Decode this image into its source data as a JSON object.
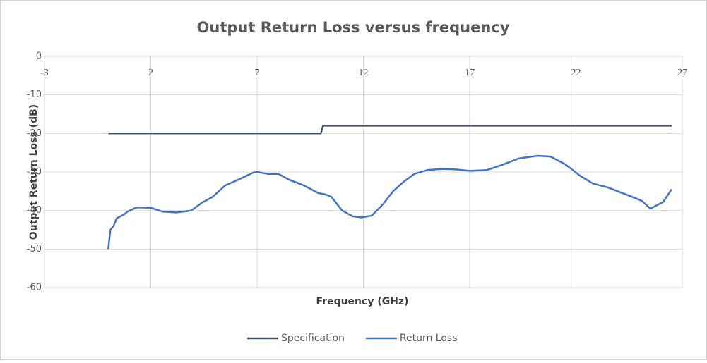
{
  "chart_data": {
    "type": "line",
    "title": "Output Return Loss versus frequency",
    "x_label": "Frequency (GHz)",
    "y_label": "Output Return Loss (dB)",
    "xlim": [
      -3,
      27
    ],
    "xticks": [
      -3,
      2,
      7,
      12,
      17,
      22,
      27
    ],
    "ylim": [
      -60,
      0
    ],
    "yticks": [
      0,
      -10,
      -20,
      -30,
      -40,
      -50,
      -60
    ],
    "grid": true,
    "legend": "bottom",
    "series": [
      {
        "name": "Specification",
        "color": "#44546a",
        "x": [
          0,
          10,
          10.1,
          26.5
        ],
        "values": [
          -20,
          -20,
          -18,
          -18
        ]
      },
      {
        "name": "Return Loss",
        "color": "#4472c4",
        "x": [
          0,
          0.1,
          0.25,
          0.4,
          0.75,
          0.9,
          1.33,
          2,
          2.56,
          3.2,
          3.9,
          4.4,
          4.9,
          5.5,
          6.2,
          6.8,
          7,
          7.5,
          8,
          8.5,
          9.2,
          9.9,
          10.2,
          10.5,
          11,
          11.5,
          11.9,
          12.4,
          12.9,
          13.4,
          13.9,
          14.4,
          15,
          15.7,
          16.3,
          17,
          17.8,
          18.5,
          19.3,
          20.2,
          20.8,
          21.5,
          22.2,
          22.8,
          23.5,
          24.2,
          24.8,
          25.1,
          25.5,
          26.1,
          26.5
        ],
        "values": [
          -50,
          -45,
          -44,
          -42,
          -41,
          -40.3,
          -39.2,
          -39.3,
          -40.3,
          -40.5,
          -40,
          -38,
          -36.5,
          -33.5,
          -31.8,
          -30.2,
          -30,
          -30.5,
          -30.5,
          -32,
          -33.5,
          -35.5,
          -35.8,
          -36.5,
          -40,
          -41.5,
          -41.8,
          -41.3,
          -38.5,
          -35,
          -32.5,
          -30.5,
          -29.5,
          -29.2,
          -29.3,
          -29.7,
          -29.5,
          -28.2,
          -26.5,
          -25.8,
          -26,
          -28,
          -31,
          -33,
          -34,
          -35.5,
          -36.8,
          -37.5,
          -39.5,
          -37.8,
          -34.5
        ]
      }
    ]
  }
}
